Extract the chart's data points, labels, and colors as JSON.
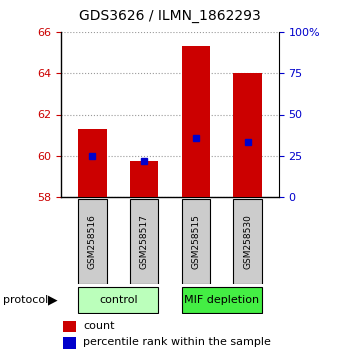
{
  "title": "GDS3626 / ILMN_1862293",
  "samples": [
    "GSM258516",
    "GSM258517",
    "GSM258515",
    "GSM258530"
  ],
  "bar_values": [
    61.3,
    59.75,
    65.3,
    64.0
  ],
  "percentile_values": [
    60.0,
    59.75,
    60.85,
    60.65
  ],
  "bar_bottom": 58.0,
  "ylim": [
    58,
    66
  ],
  "yticks_left": [
    58,
    60,
    62,
    64,
    66
  ],
  "yticks_right": [
    0,
    25,
    50,
    75,
    100
  ],
  "ytick_right_labels": [
    "0",
    "25",
    "50",
    "75",
    "100%"
  ],
  "bar_color": "#cc0000",
  "percentile_color": "#0000cc",
  "bar_width": 0.55,
  "groups": [
    {
      "label": "control",
      "indices": [
        0,
        1
      ],
      "color": "#bbffbb"
    },
    {
      "label": "MIF depletion",
      "indices": [
        2,
        3
      ],
      "color": "#44ee44"
    }
  ],
  "protocol_label": "protocol",
  "legend_count_label": "count",
  "legend_percentile_label": "percentile rank within the sample",
  "grid_color": "#999999",
  "tick_label_color_left": "#cc0000",
  "tick_label_color_right": "#0000cc",
  "sample_box_color": "#cccccc",
  "background_color": "#ffffff"
}
